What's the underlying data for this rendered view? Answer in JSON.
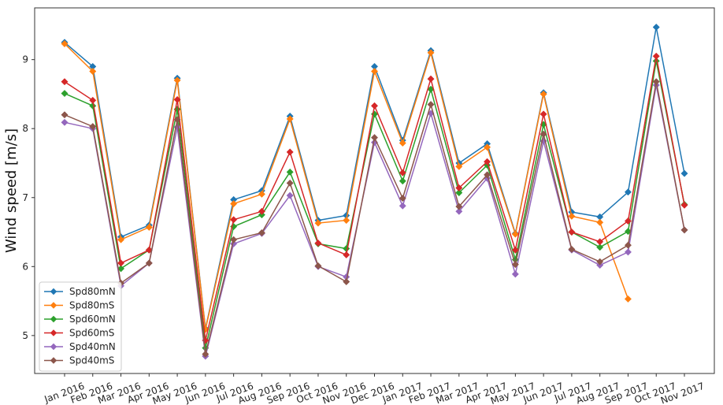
{
  "chart_data": {
    "type": "line",
    "title": "",
    "xlabel": "",
    "ylabel": "Wind speed [m/s]",
    "ylim": [
      4.45,
      9.75
    ],
    "yticks": [
      5,
      6,
      7,
      8,
      9
    ],
    "grid": false,
    "legend_position": "lower-left",
    "categories": [
      "Jan 2016",
      "Feb 2016",
      "Mar 2016",
      "Apr 2016",
      "May 2016",
      "Jun 2016",
      "Jul 2016",
      "Aug 2016",
      "Sep 2016",
      "Oct 2016",
      "Nov 2016",
      "Dec 2016",
      "Jan 2017",
      "Feb 2017",
      "Mar 2017",
      "Apr 2017",
      "May 2017",
      "Jun 2017",
      "Jul 2017",
      "Aug 2017",
      "Sep 2017",
      "Oct 2017",
      "Nov 2017"
    ],
    "series": [
      {
        "name": "Spd80mN",
        "color": "#1f77b4",
        "values": [
          9.25,
          8.9,
          6.43,
          6.6,
          8.73,
          5.1,
          6.97,
          7.1,
          8.18,
          6.67,
          6.74,
          8.9,
          7.83,
          9.13,
          7.5,
          7.78,
          6.48,
          8.52,
          6.79,
          6.72,
          7.08,
          9.47,
          7.35
        ]
      },
      {
        "name": "Spd80mS",
        "color": "#ff7f0e",
        "values": [
          9.23,
          8.83,
          6.39,
          6.57,
          8.7,
          5.09,
          6.91,
          7.05,
          8.14,
          6.63,
          6.67,
          8.83,
          7.79,
          9.1,
          7.45,
          7.73,
          6.47,
          8.5,
          6.73,
          6.64,
          5.53,
          null,
          null
        ]
      },
      {
        "name": "Spd60mN",
        "color": "#2ca02c",
        "values": [
          8.51,
          8.33,
          5.97,
          6.24,
          8.28,
          4.82,
          6.58,
          6.75,
          7.37,
          6.33,
          6.26,
          8.21,
          7.24,
          8.57,
          7.07,
          7.47,
          6.1,
          8.06,
          6.5,
          6.28,
          6.51,
          8.98,
          6.9
        ]
      },
      {
        "name": "Spd60mS",
        "color": "#d62728",
        "values": [
          8.68,
          8.41,
          6.05,
          6.24,
          8.42,
          4.93,
          6.68,
          6.8,
          7.66,
          6.34,
          6.17,
          8.33,
          7.36,
          8.72,
          7.14,
          7.52,
          6.24,
          8.21,
          6.5,
          6.36,
          6.66,
          9.05,
          6.89
        ]
      },
      {
        "name": "Spd40mN",
        "color": "#9467bd",
        "values": [
          8.09,
          8.0,
          5.72,
          6.05,
          8.02,
          4.7,
          6.33,
          6.48,
          7.03,
          6.0,
          5.85,
          7.8,
          6.88,
          8.22,
          6.8,
          7.28,
          5.89,
          7.82,
          6.24,
          6.02,
          6.21,
          8.63,
          6.53
        ]
      },
      {
        "name": "Spd40mS",
        "color": "#8c564b",
        "values": [
          8.2,
          8.03,
          5.76,
          6.05,
          8.13,
          4.73,
          6.39,
          6.49,
          7.21,
          6.01,
          5.78,
          7.87,
          6.99,
          8.35,
          6.87,
          7.33,
          6.03,
          7.92,
          6.25,
          6.07,
          6.31,
          8.68,
          6.53
        ]
      }
    ]
  }
}
